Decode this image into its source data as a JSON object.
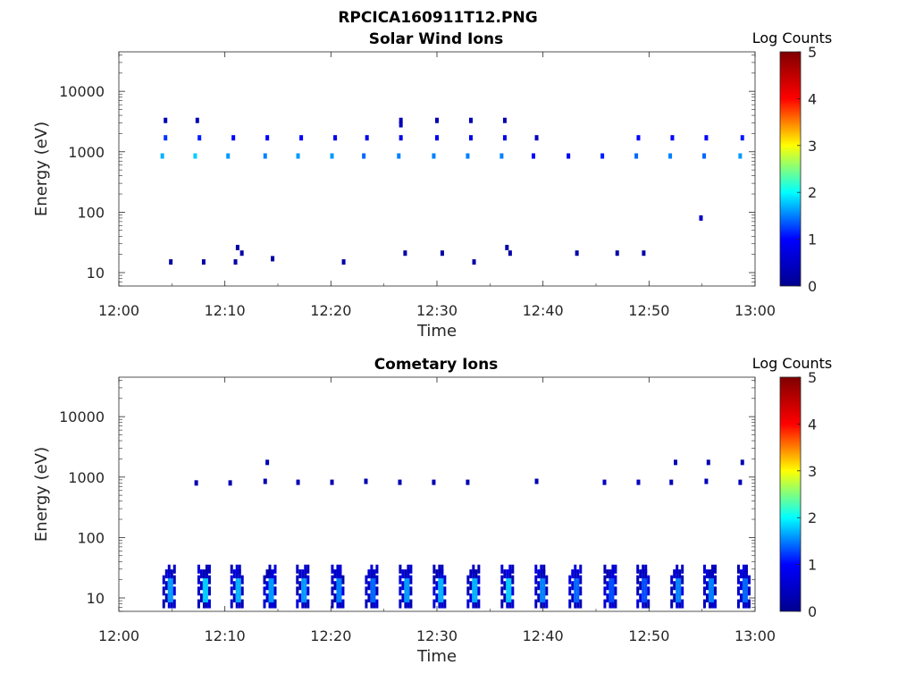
{
  "page_title": "RPCICA160911T12.PNG",
  "colormap": [
    "#00008f",
    "#0000ff",
    "#00ffff",
    "#ffff00",
    "#ff0000",
    "#800000"
  ],
  "chart_data": [
    {
      "type": "heatmap",
      "title": "Solar Wind Ions",
      "xlabel": "Time",
      "ylabel": "Energy (eV)",
      "xlim": [
        "12:00",
        "13:00"
      ],
      "xticks": [
        "12:00",
        "12:10",
        "12:20",
        "12:30",
        "12:40",
        "12:50",
        "13:00"
      ],
      "ylim": [
        6,
        45000
      ],
      "yscale": "log",
      "yticks": [
        10,
        100,
        1000,
        10000
      ],
      "yticklabels": [
        "10",
        "100",
        "1000",
        "10000"
      ],
      "colorbar": {
        "label": "Log Counts",
        "range": [
          0,
          5
        ],
        "ticks": [
          "0",
          "1",
          "2",
          "3",
          "4",
          "5"
        ]
      },
      "cells": [
        {
          "t": 4.4,
          "e": 3300,
          "c": 0.3
        },
        {
          "t": 7.4,
          "e": 3300,
          "c": 0.3
        },
        {
          "t": 26.6,
          "e": 3300,
          "c": 0.3
        },
        {
          "t": 30.0,
          "e": 3300,
          "c": 0.3
        },
        {
          "t": 33.2,
          "e": 3300,
          "c": 0.3
        },
        {
          "t": 36.4,
          "e": 3300,
          "c": 0.3
        },
        {
          "t": 26.6,
          "e": 2800,
          "c": 0.4
        },
        {
          "t": 4.4,
          "e": 1700,
          "c": 1.2
        },
        {
          "t": 7.6,
          "e": 1700,
          "c": 1.1
        },
        {
          "t": 10.8,
          "e": 1700,
          "c": 1.0
        },
        {
          "t": 14.0,
          "e": 1700,
          "c": 1.0
        },
        {
          "t": 17.2,
          "e": 1700,
          "c": 1.0
        },
        {
          "t": 20.4,
          "e": 1700,
          "c": 0.8
        },
        {
          "t": 23.4,
          "e": 1700,
          "c": 0.8
        },
        {
          "t": 26.6,
          "e": 1700,
          "c": 0.8
        },
        {
          "t": 30.0,
          "e": 1700,
          "c": 0.9
        },
        {
          "t": 33.2,
          "e": 1700,
          "c": 0.8
        },
        {
          "t": 36.4,
          "e": 1700,
          "c": 0.8
        },
        {
          "t": 39.4,
          "e": 1700,
          "c": 0.4
        },
        {
          "t": 49.0,
          "e": 1700,
          "c": 1.0
        },
        {
          "t": 52.2,
          "e": 1700,
          "c": 1.0
        },
        {
          "t": 55.4,
          "e": 1700,
          "c": 1.0
        },
        {
          "t": 58.8,
          "e": 1700,
          "c": 1.1
        },
        {
          "t": 4.1,
          "e": 850,
          "c": 1.7
        },
        {
          "t": 7.2,
          "e": 850,
          "c": 1.8
        },
        {
          "t": 10.3,
          "e": 850,
          "c": 1.6
        },
        {
          "t": 13.8,
          "e": 850,
          "c": 1.5
        },
        {
          "t": 16.9,
          "e": 850,
          "c": 1.6
        },
        {
          "t": 20.1,
          "e": 850,
          "c": 1.6
        },
        {
          "t": 23.1,
          "e": 850,
          "c": 1.4
        },
        {
          "t": 26.4,
          "e": 850,
          "c": 1.5
        },
        {
          "t": 29.7,
          "e": 850,
          "c": 1.5
        },
        {
          "t": 32.9,
          "e": 850,
          "c": 1.5
        },
        {
          "t": 36.1,
          "e": 850,
          "c": 1.5
        },
        {
          "t": 39.1,
          "e": 850,
          "c": 1.0
        },
        {
          "t": 42.4,
          "e": 850,
          "c": 0.9
        },
        {
          "t": 45.6,
          "e": 850,
          "c": 1.1
        },
        {
          "t": 48.8,
          "e": 850,
          "c": 1.4
        },
        {
          "t": 52.0,
          "e": 850,
          "c": 1.5
        },
        {
          "t": 55.2,
          "e": 850,
          "c": 1.4
        },
        {
          "t": 58.6,
          "e": 850,
          "c": 1.6
        },
        {
          "t": 54.9,
          "e": 80,
          "c": 0.5
        },
        {
          "t": 4.9,
          "e": 15,
          "c": 0.2
        },
        {
          "t": 8.0,
          "e": 15,
          "c": 0.2
        },
        {
          "t": 11.0,
          "e": 15,
          "c": 0.2
        },
        {
          "t": 11.2,
          "e": 26,
          "c": 0.2
        },
        {
          "t": 11.6,
          "e": 21,
          "c": 0.2
        },
        {
          "t": 14.5,
          "e": 17,
          "c": 0.2
        },
        {
          "t": 21.2,
          "e": 15,
          "c": 0.2
        },
        {
          "t": 27.0,
          "e": 21,
          "c": 0.2
        },
        {
          "t": 30.5,
          "e": 21,
          "c": 0.2
        },
        {
          "t": 33.5,
          "e": 15,
          "c": 0.2
        },
        {
          "t": 36.6,
          "e": 26,
          "c": 0.2
        },
        {
          "t": 36.9,
          "e": 21,
          "c": 0.2
        },
        {
          "t": 43.2,
          "e": 21,
          "c": 0.2
        },
        {
          "t": 47.0,
          "e": 21,
          "c": 0.2
        },
        {
          "t": 49.5,
          "e": 21,
          "c": 0.2
        }
      ]
    },
    {
      "type": "heatmap",
      "title": "Cometary Ions",
      "xlabel": "Time",
      "ylabel": "Energy (eV)",
      "xlim": [
        "12:00",
        "13:00"
      ],
      "xticks": [
        "12:00",
        "12:10",
        "12:20",
        "12:30",
        "12:40",
        "12:50",
        "13:00"
      ],
      "ylim": [
        6,
        45000
      ],
      "yscale": "log",
      "yticks": [
        10,
        100,
        1000,
        10000
      ],
      "yticklabels": [
        "10",
        "100",
        "1000",
        "10000"
      ],
      "colorbar": {
        "label": "Log Counts",
        "range": [
          0,
          5
        ],
        "ticks": [
          "0",
          "1",
          "2",
          "3",
          "4",
          "5"
        ]
      },
      "cells": [
        {
          "t": 14.0,
          "e": 1750,
          "c": 0.3
        },
        {
          "t": 52.5,
          "e": 1750,
          "c": 0.3
        },
        {
          "t": 55.6,
          "e": 1750,
          "c": 0.3
        },
        {
          "t": 58.8,
          "e": 1750,
          "c": 0.3
        },
        {
          "t": 7.3,
          "e": 800,
          "c": 0.3
        },
        {
          "t": 10.5,
          "e": 800,
          "c": 0.3
        },
        {
          "t": 13.8,
          "e": 850,
          "c": 0.3
        },
        {
          "t": 16.9,
          "e": 820,
          "c": 0.3
        },
        {
          "t": 20.1,
          "e": 820,
          "c": 0.3
        },
        {
          "t": 23.3,
          "e": 850,
          "c": 0.3
        },
        {
          "t": 26.5,
          "e": 820,
          "c": 0.3
        },
        {
          "t": 29.7,
          "e": 820,
          "c": 0.3
        },
        {
          "t": 32.9,
          "e": 820,
          "c": 0.3
        },
        {
          "t": 39.4,
          "e": 850,
          "c": 0.3
        },
        {
          "t": 45.8,
          "e": 820,
          "c": 0.4
        },
        {
          "t": 49.0,
          "e": 820,
          "c": 0.4
        },
        {
          "t": 52.1,
          "e": 820,
          "c": 0.4
        },
        {
          "t": 55.4,
          "e": 850,
          "c": 0.4
        },
        {
          "t": 58.6,
          "e": 820,
          "c": 0.4
        }
      ],
      "bursts": [
        {
          "t": 4.7,
          "c": 1.6
        },
        {
          "t": 8.0,
          "c": 1.8
        },
        {
          "t": 11.1,
          "c": 1.7
        },
        {
          "t": 14.2,
          "c": 1.6
        },
        {
          "t": 17.3,
          "c": 1.6
        },
        {
          "t": 20.6,
          "c": 1.5
        },
        {
          "t": 23.8,
          "c": 1.4
        },
        {
          "t": 27.0,
          "c": 1.6
        },
        {
          "t": 30.2,
          "c": 1.7
        },
        {
          "t": 33.4,
          "c": 1.7
        },
        {
          "t": 36.6,
          "c": 1.8
        },
        {
          "t": 39.8,
          "c": 1.5
        },
        {
          "t": 43.0,
          "c": 1.4
        },
        {
          "t": 46.3,
          "c": 1.3
        },
        {
          "t": 49.4,
          "c": 1.3
        },
        {
          "t": 52.6,
          "c": 1.5
        },
        {
          "t": 55.7,
          "c": 1.5
        },
        {
          "t": 58.9,
          "c": 1.4
        }
      ]
    }
  ]
}
